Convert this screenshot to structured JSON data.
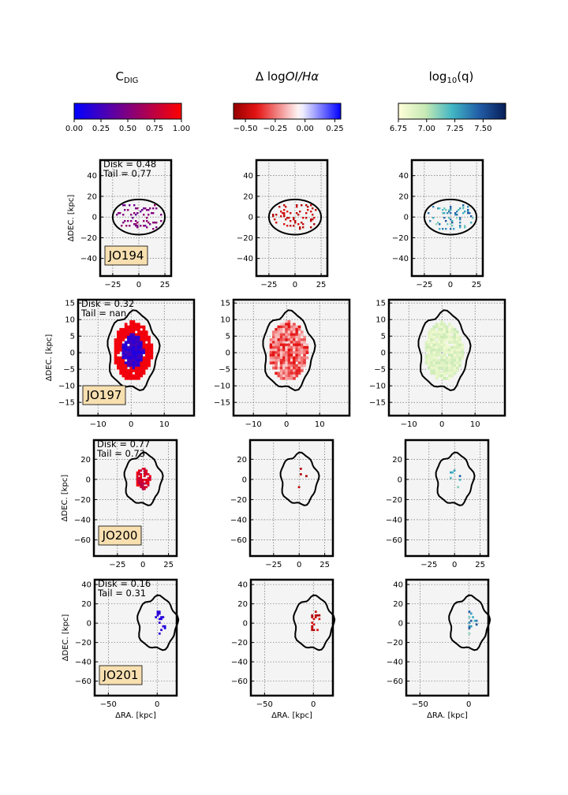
{
  "headers": {
    "cdig_base": "C",
    "cdig_sub": "DIG",
    "dlog_prefix": "Δ log",
    "dlog_italic": "OI/Hα",
    "logq_base": "log",
    "logq_sub": "10",
    "logq_suffix": "(q)"
  },
  "colorbars": [
    {
      "name": "C_DIG",
      "cmap": "blue-red",
      "ticks": [
        "0.00",
        "0.25",
        "0.50",
        "0.75",
        "1.00"
      ],
      "range": [
        0,
        1
      ]
    },
    {
      "name": "delta-log-OI-Halpha",
      "cmap": "red-white-blue",
      "ticks": [
        "−0.50",
        "−0.25",
        "0.00",
        "0.25"
      ],
      "range": [
        -0.6,
        0.3
      ]
    },
    {
      "name": "log10-q",
      "cmap": "yellow-green-blue",
      "ticks": [
        "6.75",
        "7.00",
        "7.25",
        "7.50"
      ],
      "range": [
        6.75,
        7.7
      ]
    }
  ],
  "axis_labels": {
    "xlabel": "ΔRA. [kpc]",
    "ylabel": "ΔDEC. [kpc]"
  },
  "chart_data": [
    {
      "type": "heatmap",
      "galaxy": "JO194",
      "disk_text": "Disk = 0.48",
      "tail_text": "Tail = 0.77",
      "xlim": [
        -37,
        31
      ],
      "ylim": [
        -57,
        55
      ],
      "xticks": [
        "−25",
        "0",
        "25"
      ],
      "xtick_values": [
        -25,
        0,
        25
      ],
      "yticks": [
        "40",
        "20",
        "0",
        "−20",
        "−40"
      ],
      "ytick_values": [
        40,
        20,
        0,
        -20,
        -40
      ],
      "contour": {
        "shape": "ellipse",
        "cx": 0,
        "cy": 0,
        "rx": 25,
        "ry": 17
      },
      "emission": "patchy"
    },
    {
      "type": "heatmap",
      "galaxy": "JO197",
      "disk_text": "Disk = 0.32",
      "tail_text": "Tail = nan",
      "xlim": [
        -16,
        19
      ],
      "ylim": [
        -19,
        16
      ],
      "xticks": [
        "−10",
        "0",
        "10"
      ],
      "xtick_values": [
        -10,
        0,
        10
      ],
      "yticks": [
        "15",
        "10",
        "5",
        "0",
        "−5",
        "−10",
        "−15"
      ],
      "ytick_values": [
        15,
        10,
        5,
        0,
        -5,
        -10,
        -15
      ],
      "contour": {
        "shape": "blob",
        "cx": 0.5,
        "cy": 0.5,
        "rx": 7.5,
        "ry": 11.5
      },
      "emission": "full"
    },
    {
      "type": "heatmap",
      "galaxy": "JO200",
      "disk_text": "Disk = 0.77",
      "tail_text": "Tail = 0.73",
      "xlim": [
        -48,
        33
      ],
      "ylim": [
        -76,
        39
      ],
      "xticks": [
        "−25",
        "0",
        "25"
      ],
      "xtick_values": [
        -25,
        0,
        25
      ],
      "yticks": [
        "20",
        "0",
        "−20",
        "−40",
        "−60"
      ],
      "ytick_values": [
        20,
        0,
        -20,
        -40,
        -60
      ],
      "contour": {
        "shape": "blob",
        "cx": 0,
        "cy": 0,
        "rx": 18,
        "ry": 25
      },
      "emission": "medium"
    },
    {
      "type": "heatmap",
      "galaxy": "JO201",
      "disk_text": "Disk = 0.16",
      "tail_text": "Tail = 0.31",
      "xlim": [
        -64,
        20
      ],
      "ylim": [
        -75,
        45
      ],
      "xticks": [
        "−50",
        "0"
      ],
      "xtick_values": [
        -50,
        0
      ],
      "yticks": [
        "40",
        "20",
        "0",
        "−20",
        "−40",
        "−60"
      ],
      "ytick_values": [
        40,
        20,
        0,
        -20,
        -40,
        -60
      ],
      "contour": {
        "shape": "blob",
        "cx": 0,
        "cy": 0,
        "rx": 20,
        "ry": 27
      },
      "emission": "sparse"
    }
  ]
}
